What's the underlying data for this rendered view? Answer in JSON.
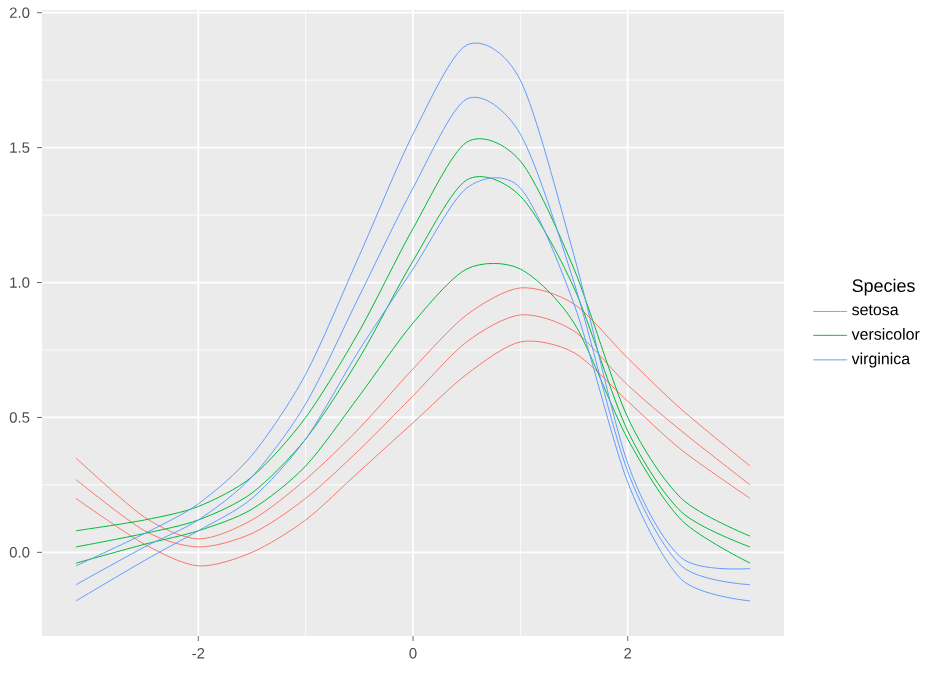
{
  "chart_data": {
    "type": "line",
    "x": [
      -3.14,
      -2.5,
      -2,
      -1.5,
      -1,
      -0.5,
      0,
      0.5,
      1,
      1.5,
      2,
      2.5,
      3.14
    ],
    "xlim": [
      -3.456,
      3.456
    ],
    "ylim": [
      -0.31,
      2.01
    ],
    "xticks": [
      -2,
      0,
      2
    ],
    "yticks": [
      {
        "value": 0,
        "label": "0.0"
      },
      {
        "value": 0.5,
        "label": "0.5"
      },
      {
        "value": 1,
        "label": "1.0"
      },
      {
        "value": 1.5,
        "label": "1.5"
      },
      {
        "value": 2,
        "label": "2.0"
      }
    ],
    "grid": true,
    "legend": "right",
    "legend_title": "Species",
    "series": [
      {
        "name": "setosa",
        "color": "#f8766d",
        "values": [
          0.27,
          0.08,
          0.02,
          0.07,
          0.2,
          0.38,
          0.58,
          0.78,
          0.88,
          0.82,
          0.62,
          0.45,
          0.25
        ]
      },
      {
        "color": "#f8766d",
        "values": [
          0.35,
          0.13,
          0.05,
          0.12,
          0.27,
          0.46,
          0.68,
          0.88,
          0.98,
          0.92,
          0.72,
          0.53,
          0.32
        ]
      },
      {
        "color": "#f8766d",
        "values": [
          0.2,
          0.03,
          -0.05,
          0.0,
          0.12,
          0.3,
          0.48,
          0.66,
          0.78,
          0.74,
          0.56,
          0.38,
          0.2
        ]
      },
      {
        "name": "versicolor",
        "color": "#00ba38",
        "values": [
          0.02,
          0.07,
          0.12,
          0.22,
          0.42,
          0.72,
          1.08,
          1.38,
          1.32,
          0.98,
          0.45,
          0.15,
          0.02
        ]
      },
      {
        "color": "#00ba38",
        "values": [
          0.08,
          0.12,
          0.17,
          0.28,
          0.5,
          0.82,
          1.2,
          1.52,
          1.45,
          1.05,
          0.5,
          0.2,
          0.06
        ]
      },
      {
        "color": "#00ba38",
        "values": [
          -0.04,
          0.03,
          0.08,
          0.16,
          0.32,
          0.58,
          0.85,
          1.05,
          1.05,
          0.85,
          0.42,
          0.12,
          -0.04
        ]
      },
      {
        "name": "virginica",
        "color": "#619cff",
        "values": [
          -0.12,
          0.02,
          0.12,
          0.28,
          0.55,
          0.95,
          1.35,
          1.68,
          1.55,
          1.0,
          0.3,
          -0.05,
          -0.12
        ]
      },
      {
        "color": "#619cff",
        "values": [
          -0.05,
          0.07,
          0.18,
          0.36,
          0.66,
          1.1,
          1.55,
          1.88,
          1.75,
          1.1,
          0.33,
          -0.02,
          -0.06
        ]
      },
      {
        "color": "#619cff",
        "values": [
          -0.18,
          -0.03,
          0.08,
          0.2,
          0.42,
          0.75,
          1.05,
          1.35,
          1.35,
          0.92,
          0.26,
          -0.1,
          -0.18
        ]
      }
    ]
  }
}
